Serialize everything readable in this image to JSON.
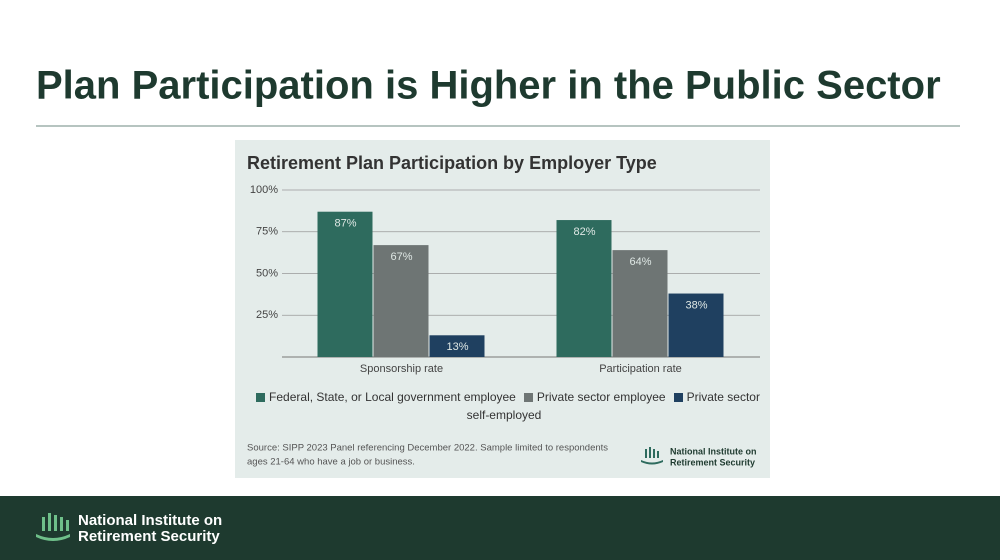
{
  "page": {
    "title": "Plan Participation is Higher in the Public Sector"
  },
  "chart_data": {
    "type": "bar",
    "title": "Retirement Plan Participation by Employer Type",
    "categories": [
      "Sponsorship rate",
      "Participation rate"
    ],
    "series": [
      {
        "name": "Federal, State, or Local government employee",
        "color": "#2e6b5e",
        "values": [
          87,
          82
        ],
        "value_labels": [
          "87%",
          "82%"
        ]
      },
      {
        "name": "Private sector employee",
        "color": "#6e7574",
        "values": [
          67,
          64
        ],
        "value_labels": [
          "67%",
          "64%"
        ]
      },
      {
        "name": "Private sector self-employed",
        "color": "#1f4060",
        "values": [
          13,
          38
        ],
        "value_labels": [
          "13%",
          "38%"
        ]
      }
    ],
    "ylim": [
      0,
      100
    ],
    "yticks": [
      {
        "value": 25,
        "label": "25%"
      },
      {
        "value": 50,
        "label": "50%"
      },
      {
        "value": 75,
        "label": "75%"
      },
      {
        "value": 100,
        "label": "100%"
      }
    ],
    "grid": true,
    "source": [
      "Source: SIPP 2023 Panel referencing December 2022. Sample limited to respondents",
      "ages 21-64 who have a job or business."
    ],
    "logo": [
      "National Institute on",
      "Retirement Security"
    ]
  },
  "footer": {
    "logo": [
      "National Institute on",
      "Retirement Security"
    ]
  }
}
